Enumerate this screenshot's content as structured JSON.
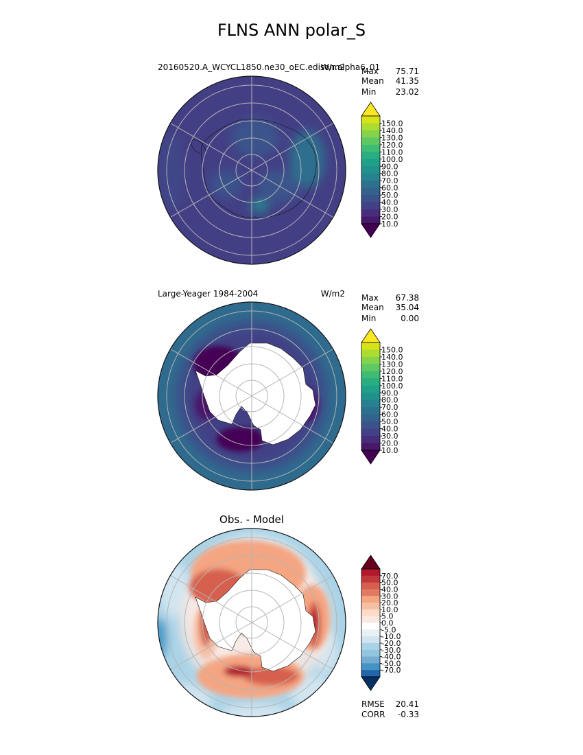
{
  "title": "FLNS ANN polar_S",
  "colors": {
    "viridis": [
      "#440154",
      "#48186a",
      "#472d7b",
      "#424086",
      "#3b528b",
      "#33638d",
      "#2c728e",
      "#26828e",
      "#21918c",
      "#1fa088",
      "#28ae80",
      "#3fbc73",
      "#5ec962",
      "#84d44b",
      "#addc30",
      "#d8e219",
      "#fde725"
    ],
    "rdbu": [
      "#053061",
      "#2166ac",
      "#4393c3",
      "#74add1",
      "#92c5de",
      "#abd3e7",
      "#d1e5f0",
      "#eaf1f4",
      "#ffffff",
      "#fbe9e1",
      "#fddbc7",
      "#f7c0a4",
      "#f4a582",
      "#e07a63",
      "#d6604d",
      "#c0383b",
      "#b2182b",
      "#67001f"
    ]
  },
  "panels": [
    {
      "id": "model",
      "left_label": "20160520.A_WCYCL1850.ne30_oEC.edison.alpha6_01",
      "right_label": "W/m2",
      "stats": [
        {
          "label": "Max",
          "value": "75.71"
        },
        {
          "label": "Mean",
          "value": "41.35"
        },
        {
          "label": "Min",
          "value": "23.02"
        }
      ],
      "colorbar_ticks": [
        "150.0",
        "140.0",
        "130.0",
        "120.0",
        "110.0",
        "100.0",
        "90.0",
        "80.0",
        "70.0",
        "60.0",
        "50.0",
        "40.0",
        "30.0",
        "20.0",
        "10.0"
      ]
    },
    {
      "id": "obs",
      "left_label": "Large-Yeager 1984-2004",
      "right_label": "W/m2",
      "stats": [
        {
          "label": "Max",
          "value": "67.38"
        },
        {
          "label": "Mean",
          "value": "35.04"
        },
        {
          "label": "Min",
          "value": "0.00"
        }
      ],
      "colorbar_ticks": [
        "150.0",
        "140.0",
        "130.0",
        "120.0",
        "110.0",
        "100.0",
        "90.0",
        "80.0",
        "70.0",
        "60.0",
        "50.0",
        "40.0",
        "30.0",
        "20.0",
        "10.0"
      ]
    },
    {
      "id": "diff",
      "title": "Obs. - Model",
      "stats": [
        {
          "label": "RMSE",
          "value": "20.41"
        },
        {
          "label": "CORR",
          "value": "-0.33"
        }
      ],
      "colorbar_ticks": [
        "70.0",
        "50.0",
        "40.0",
        "30.0",
        "20.0",
        "10.0",
        "5.0",
        "0.0",
        "-5.0",
        "-10.0",
        "-20.0",
        "-30.0",
        "-40.0",
        "-50.0",
        "-70.0"
      ]
    }
  ],
  "chart_data": {
    "type": "heatmap",
    "title": "FLNS ANN polar_S",
    "projection": "south polar stereographic",
    "subplots": [
      {
        "name": "20160520.A_WCYCL1850.ne30_oEC.edison.alpha6_01",
        "units": "W/m2",
        "max": 75.71,
        "mean": 41.35,
        "min": 23.02,
        "levels": [
          10,
          20,
          30,
          40,
          50,
          60,
          70,
          80,
          90,
          100,
          110,
          120,
          130,
          140,
          150
        ]
      },
      {
        "name": "Large-Yeager 1984-2004",
        "units": "W/m2",
        "max": 67.38,
        "mean": 35.04,
        "min": 0.0,
        "levels": [
          10,
          20,
          30,
          40,
          50,
          60,
          70,
          80,
          90,
          100,
          110,
          120,
          130,
          140,
          150
        ]
      },
      {
        "name": "Obs. - Model",
        "rmse": 20.41,
        "corr": -0.33,
        "levels": [
          -70,
          -50,
          -40,
          -30,
          -20,
          -10,
          -5,
          0,
          5,
          10,
          20,
          30,
          40,
          50,
          70
        ]
      }
    ]
  }
}
